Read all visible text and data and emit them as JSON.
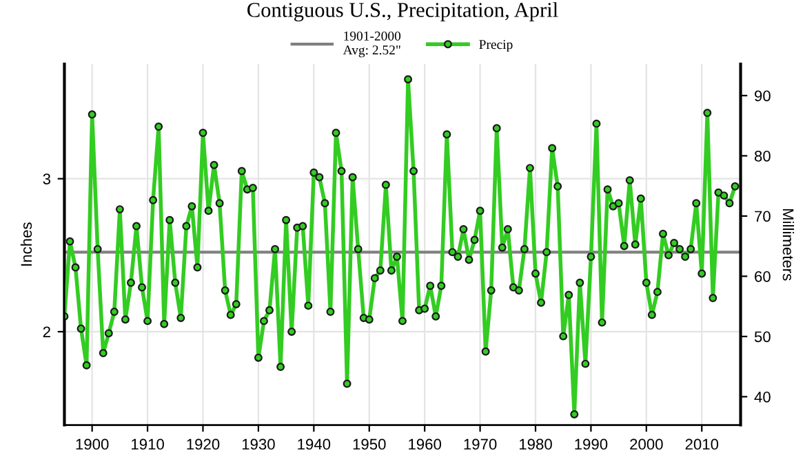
{
  "chart_data": {
    "type": "line",
    "title": "Contiguous U.S., Precipitation, April",
    "x": [
      1895,
      1896,
      1897,
      1898,
      1899,
      1900,
      1901,
      1902,
      1903,
      1904,
      1905,
      1906,
      1907,
      1908,
      1909,
      1910,
      1911,
      1912,
      1913,
      1914,
      1915,
      1916,
      1917,
      1918,
      1919,
      1920,
      1921,
      1922,
      1923,
      1924,
      1925,
      1926,
      1927,
      1928,
      1929,
      1930,
      1931,
      1932,
      1933,
      1934,
      1935,
      1936,
      1937,
      1938,
      1939,
      1940,
      1941,
      1942,
      1943,
      1944,
      1945,
      1946,
      1947,
      1948,
      1949,
      1950,
      1951,
      1952,
      1953,
      1954,
      1955,
      1956,
      1957,
      1958,
      1959,
      1960,
      1961,
      1962,
      1963,
      1964,
      1965,
      1966,
      1967,
      1968,
      1969,
      1970,
      1971,
      1972,
      1973,
      1974,
      1975,
      1976,
      1977,
      1978,
      1979,
      1980,
      1981,
      1982,
      1983,
      1984,
      1985,
      1986,
      1987,
      1988,
      1989,
      1990,
      1991,
      1992,
      1993,
      1994,
      1995,
      1996,
      1997,
      1998,
      1999,
      2000,
      2001,
      2002,
      2003,
      2004,
      2005,
      2006,
      2007,
      2008,
      2009,
      2010,
      2011,
      2012,
      2013,
      2014,
      2015,
      2016
    ],
    "series": [
      {
        "name": "Precip",
        "color": "#33cc22",
        "values": [
          2.1,
          2.59,
          2.42,
          2.02,
          1.78,
          3.42,
          2.54,
          1.86,
          1.99,
          2.13,
          2.8,
          2.08,
          2.32,
          2.69,
          2.29,
          2.07,
          2.86,
          3.34,
          2.05,
          2.73,
          2.32,
          2.09,
          2.69,
          2.82,
          2.42,
          3.3,
          2.79,
          3.09,
          2.84,
          2.27,
          2.11,
          2.18,
          3.05,
          2.93,
          2.94,
          1.83,
          2.07,
          2.14,
          2.54,
          1.77,
          2.73,
          2.0,
          2.68,
          2.69,
          2.17,
          3.04,
          3.01,
          2.84,
          2.13,
          3.3,
          3.05,
          1.66,
          3.01,
          2.54,
          2.09,
          2.08,
          2.35,
          2.4,
          2.96,
          2.4,
          2.49,
          2.07,
          3.65,
          3.05,
          2.14,
          2.15,
          2.3,
          2.1,
          2.3,
          3.29,
          2.52,
          2.49,
          2.67,
          2.47,
          2.6,
          2.79,
          1.87,
          2.27,
          3.33,
          2.55,
          2.67,
          2.29,
          2.27,
          2.54,
          3.07,
          2.38,
          2.19,
          2.52,
          3.2,
          2.95,
          1.97,
          2.24,
          1.46,
          2.32,
          1.79,
          2.49,
          3.36,
          2.06,
          2.93,
          2.82,
          2.84,
          2.56,
          2.99,
          2.57,
          2.87,
          2.32,
          2.11,
          2.26,
          2.64,
          2.5,
          2.58,
          2.54,
          2.49,
          2.54,
          2.84,
          2.38,
          3.43,
          2.22,
          2.91,
          2.89,
          2.84,
          2.95
        ]
      }
    ],
    "marker": "circle",
    "line_style": "solid",
    "xlim": [
      1895,
      2017
    ],
    "xticks": [
      1900,
      1910,
      1920,
      1930,
      1940,
      1950,
      1960,
      1970,
      1980,
      1990,
      2000,
      2010
    ],
    "ylim": [
      1.39,
      3.75
    ],
    "yticks": [
      2,
      3
    ],
    "ylabel": "Inches",
    "y2lim": [
      35.3,
      95.25
    ],
    "y2ticks": [
      40,
      50,
      60,
      70,
      80,
      90
    ],
    "y2label": "Millimeters",
    "ref_lines": [
      {
        "axis": "y",
        "value": 2.52,
        "label": "1901-2000\nAvg: 2.52\"",
        "color": "#808080",
        "line_style": "solid"
      }
    ],
    "grid": true,
    "legend": "top"
  }
}
